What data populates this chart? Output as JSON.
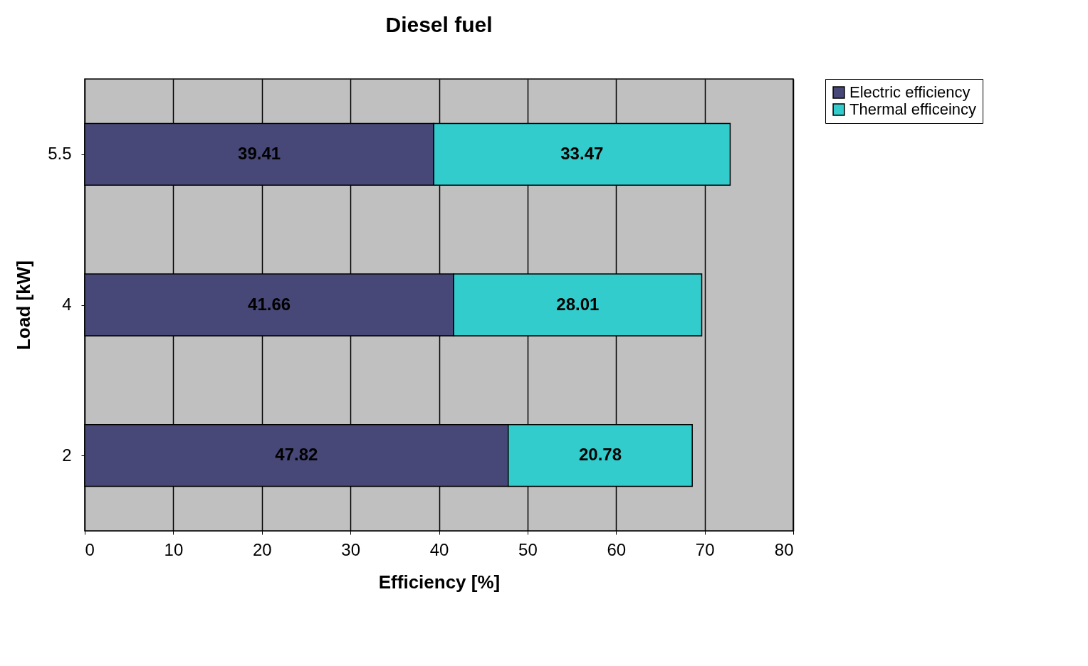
{
  "chart_data": {
    "type": "bar",
    "orientation": "horizontal",
    "stacked": true,
    "title": "Diesel fuel",
    "xlabel": "Efficiency [%]",
    "ylabel": "Load [kW]",
    "categories": [
      "5.5",
      "4",
      "2"
    ],
    "series": [
      {
        "name": "Electric efficiency",
        "color": "#484878",
        "values": [
          39.41,
          41.66,
          47.82
        ]
      },
      {
        "name": "Thermal efficeincy",
        "color": "#33cccc",
        "values": [
          33.47,
          28.01,
          20.78
        ]
      }
    ],
    "xlim": [
      0,
      80
    ],
    "xticks": [
      0,
      10,
      20,
      30,
      40,
      50,
      60,
      70,
      80
    ],
    "grid": "x",
    "legend": "right",
    "data_labels": true
  }
}
